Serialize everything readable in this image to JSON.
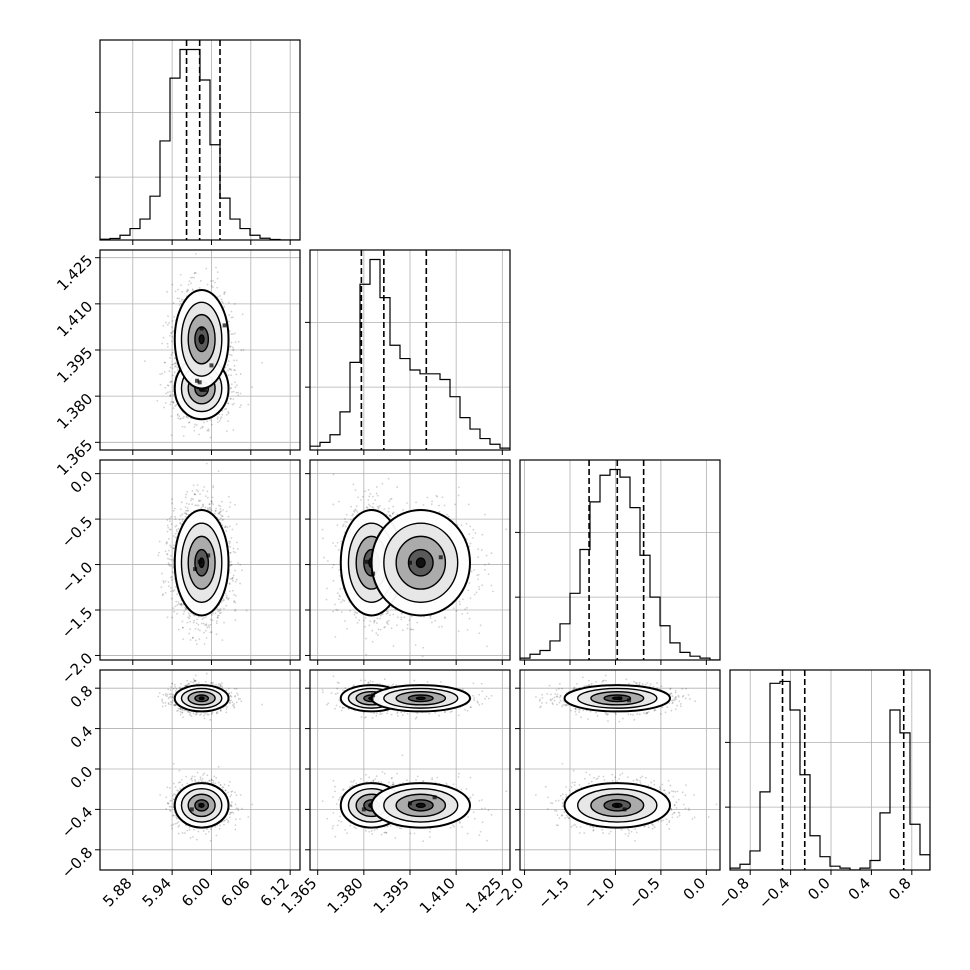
{
  "chart_data": {
    "type": "corner",
    "n_params": 4,
    "grid": true,
    "legend": "none",
    "params": [
      {
        "ticks": [
          5.88,
          5.94,
          6.0,
          6.06,
          6.12
        ],
        "tick_labels": [
          "5.88",
          "5.94",
          "6.00",
          "6.06",
          "6.12"
        ],
        "range": [
          5.83,
          6.135
        ],
        "quantiles": [
          5.962,
          5.982,
          6.013
        ],
        "peaks": [
          {
            "mu": 5.985,
            "sigma": 0.0205,
            "w": 1.0
          }
        ],
        "hist": [
          0.004,
          0.008,
          0.025,
          0.06,
          0.11,
          0.23,
          0.52,
          0.85,
          1.0,
          1.0,
          0.84,
          0.5,
          0.22,
          0.11,
          0.06,
          0.025,
          0.009,
          0.003,
          0.0,
          0.0
        ]
      },
      {
        "ticks": [
          1.365,
          1.38,
          1.395,
          1.41,
          1.425
        ],
        "tick_labels": [
          "1.365",
          "1.380",
          "1.395",
          "1.410",
          "1.425"
        ],
        "range": [
          1.3625,
          1.4275
        ],
        "quantiles": [
          1.3792,
          1.3865,
          1.4003
        ],
        "peaks": [
          {
            "mu": 1.3825,
            "sigma": 0.005,
            "w": 1.0
          },
          {
            "mu": 1.3985,
            "sigma": 0.008,
            "w": 0.45
          }
        ],
        "hist": [
          0.02,
          0.04,
          0.08,
          0.2,
          0.46,
          0.87,
          1.0,
          0.8,
          0.55,
          0.48,
          0.42,
          0.4,
          0.4,
          0.37,
          0.28,
          0.17,
          0.11,
          0.06,
          0.03,
          0.01
        ]
      },
      {
        "ticks": [
          -2.0,
          -1.5,
          -1.0,
          -0.5,
          0.0
        ],
        "tick_labels": [
          "−2.0",
          "−1.5",
          "−1.0",
          "−0.5",
          "0.0"
        ],
        "range": [
          -2.05,
          0.15
        ],
        "quantiles": [
          -1.29,
          -0.98,
          -0.69
        ],
        "peaks": [
          {
            "mu": -0.98,
            "sigma": 0.29,
            "w": 1.0
          }
        ],
        "hist": [
          0.01,
          0.03,
          0.05,
          0.1,
          0.19,
          0.35,
          0.58,
          0.83,
          0.97,
          1.0,
          0.96,
          0.8,
          0.55,
          0.33,
          0.18,
          0.09,
          0.04,
          0.02,
          0.01,
          0.0
        ]
      },
      {
        "ticks": [
          -0.8,
          -0.4,
          0.0,
          0.4,
          0.8
        ],
        "tick_labels": [
          "−0.8",
          "−0.4",
          "0.0",
          "0.4",
          "0.8"
        ],
        "range": [
          -1.0,
          0.98
        ],
        "quantiles": [
          -0.48,
          -0.26,
          0.72
        ],
        "peaks": [
          {
            "mu": -0.36,
            "sigma": 0.11,
            "w": 1.0
          },
          {
            "mu": 0.7,
            "sigma": 0.065,
            "w": 0.5
          }
        ],
        "hist": [
          0.01,
          0.03,
          0.1,
          0.41,
          0.98,
          0.99,
          0.84,
          0.5,
          0.18,
          0.07,
          0.02,
          0.01,
          0.0,
          0.01,
          0.05,
          0.3,
          0.84,
          0.72,
          0.24,
          0.08
        ]
      }
    ],
    "pairs": [
      {
        "row": 1,
        "col": 0,
        "points": [
          [
            5.982,
            1.3845
          ],
          [
            5.99,
            1.382
          ],
          [
            5.978,
            1.385
          ],
          [
            6.0,
            1.39
          ],
          [
            5.985,
            1.402
          ],
          [
            6.02,
            1.403
          ]
        ]
      },
      {
        "row": 2,
        "col": 0,
        "points": [
          [
            5.982,
            -0.97
          ],
          [
            5.975,
            -1.05
          ],
          [
            5.995,
            -0.9
          ]
        ]
      },
      {
        "row": 2,
        "col": 1,
        "points": [
          [
            1.381,
            -0.97
          ],
          [
            1.383,
            -1.1
          ],
          [
            1.395,
            -0.98
          ],
          [
            1.405,
            -0.92
          ]
        ]
      },
      {
        "row": 3,
        "col": 0,
        "points": [
          [
            5.985,
            0.7
          ],
          [
            5.983,
            -0.36
          ],
          [
            5.97,
            -0.4
          ]
        ]
      },
      {
        "row": 3,
        "col": 1,
        "points": [
          [
            1.3825,
            0.7
          ],
          [
            1.383,
            0.73
          ],
          [
            1.38,
            -0.4
          ],
          [
            1.395,
            -0.34
          ],
          [
            1.403,
            -0.28
          ]
        ]
      },
      {
        "row": 3,
        "col": 2,
        "points": [
          [
            -0.95,
            0.7
          ],
          [
            -0.85,
            0.68
          ],
          [
            -0.98,
            -0.36
          ],
          [
            -0.9,
            -0.4
          ]
        ]
      }
    ]
  }
}
